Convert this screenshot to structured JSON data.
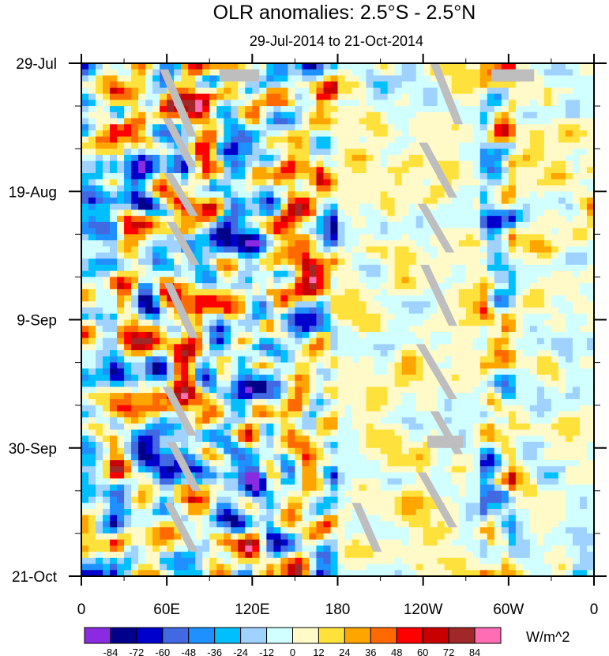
{
  "chart_data": {
    "type": "heatmap",
    "title": "OLR anomalies: 2.5°S - 2.5°N",
    "subtitle": "29-Jul-2014 to 21-Oct-2014",
    "x_ticks": [
      "0",
      "60E",
      "120E",
      "180",
      "120W",
      "60W",
      "0"
    ],
    "x_tick_values": [
      0,
      60,
      120,
      180,
      240,
      300,
      360
    ],
    "xlim": [
      0,
      360
    ],
    "y_ticks": [
      "29-Jul",
      "19-Aug",
      "9-Sep",
      "30-Sep",
      "21-Oct"
    ],
    "y_tick_days": [
      0,
      21,
      42,
      63,
      84
    ],
    "ylim_days": [
      0,
      84
    ],
    "colorbar": {
      "labels": [
        "-84",
        "-72",
        "-60",
        "-48",
        "-36",
        "-24",
        "-12",
        "0",
        "12",
        "24",
        "36",
        "48",
        "60",
        "72",
        "84"
      ],
      "colors": [
        "#8a2be2",
        "#00008b",
        "#0000cd",
        "#4169e1",
        "#1e90ff",
        "#00bfff",
        "#a0d2ff",
        "#d1feff",
        "#fffac8",
        "#ffe13c",
        "#ffa500",
        "#ff6a00",
        "#ff0000",
        "#c80000",
        "#a02828",
        "#ff6eb4"
      ],
      "units": "W/m^2",
      "position": "bottom"
    },
    "missing_color": "#bebebe"
  }
}
